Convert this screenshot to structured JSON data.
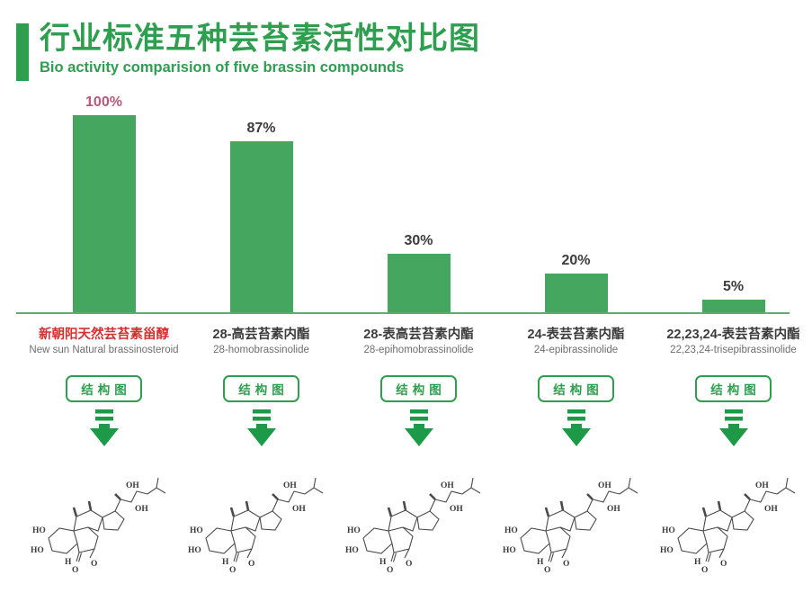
{
  "header": {
    "title_zh": "行业标准五种芸苔素活性对比图",
    "subtitle_en": "Bio activity comparision of five brassin compounds",
    "accent_color": "#2E9E4F"
  },
  "chart_data": {
    "type": "bar",
    "title": "行业标准五种芸苔素活性对比图",
    "subtitle": "Bio activity comparision of five brassin compounds",
    "categories": [
      "新朝阳天然芸苔素甾醇",
      "28-高芸苔素内酯",
      "28-表高芸苔素内酯",
      "24-表芸苔素内酯",
      "22,23,24-表芸苔素内酯"
    ],
    "categories_en": [
      "New sun Natural brassinosteroid",
      "28-homobrassinolide",
      "28-epihomobrassinolide",
      "24-epibrassinolide",
      "22,23,24-trisepibrassinolide"
    ],
    "values": [
      100,
      87,
      30,
      20,
      5
    ],
    "value_labels": [
      "100%",
      "87%",
      "30%",
      "20%",
      "5%"
    ],
    "xlabel": "",
    "ylabel": "",
    "ylim": [
      0,
      100
    ],
    "grid": false,
    "legend": false,
    "bar_color": "#45A75F",
    "axis_line_color": "#5FAC72",
    "value_color": "#3C3C3C",
    "highlight_value_color": "#B5587A",
    "category_color": "#3C3C3C",
    "highlight_category_color": "#D43030",
    "category_en_color": "#6E6E6E"
  },
  "structure_button": {
    "label": "结构图"
  },
  "arrow": {
    "color": "#1D9A47"
  },
  "chem": {
    "ho": "HO",
    "oh": "OH",
    "h": "H",
    "o": "O"
  }
}
